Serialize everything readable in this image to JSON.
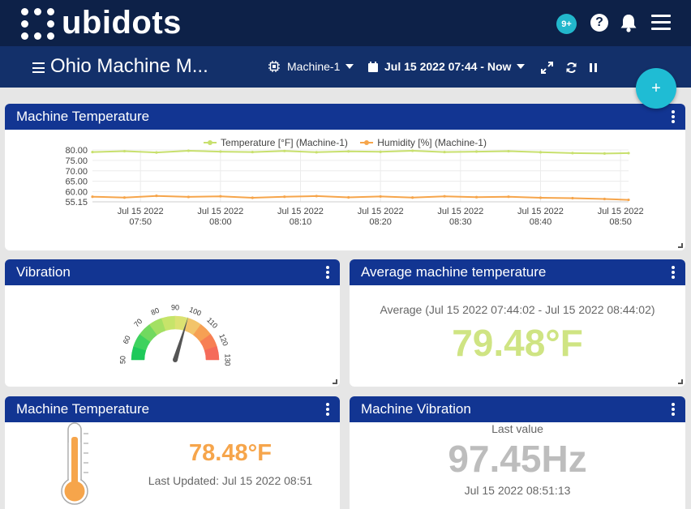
{
  "app": {
    "logo_text": "ubidots"
  },
  "header": {
    "notification_count": "9+",
    "help_label": "?"
  },
  "dashboard": {
    "title": "Ohio Machine M...",
    "device_selector": "Machine-1",
    "date_range": "Jul 15 2022 07:44 - Now",
    "add_label": "+"
  },
  "widgets": {
    "line_chart": {
      "title": "Machine Temperature"
    },
    "vibration": {
      "title": "Vibration"
    },
    "avg_temp": {
      "title": "Average machine temperature",
      "caption": "Average (Jul 15 2022 07:44:02 - Jul 15 2022 08:44:02)",
      "value": "79.48°F",
      "color": "#cfe483"
    },
    "thermo": {
      "title": "Machine Temperature",
      "value": "78.48°F",
      "updated": "Last Updated: Jul 15 2022 08:51",
      "color": "#f6a54b"
    },
    "machine_vibration": {
      "title": "Machine Vibration",
      "caption": "Last value",
      "value": "97.45Hz",
      "timestamp": "Jul 15 2022 08:51:13",
      "color": "#bdbdbd"
    }
  },
  "chart_data": {
    "type": "line",
    "title": "",
    "xlabel": "",
    "ylabel": "",
    "y_ticks": [
      "80.00",
      "75.00",
      "70.00",
      "65.00",
      "60.00",
      "55.15"
    ],
    "ylim": [
      55.15,
      80.0
    ],
    "x_ticks": [
      {
        "date": "Jul 15 2022",
        "time": "07:50"
      },
      {
        "date": "Jul 15 2022",
        "time": "08:00"
      },
      {
        "date": "Jul 15 2022",
        "time": "08:10"
      },
      {
        "date": "Jul 15 2022",
        "time": "08:20"
      },
      {
        "date": "Jul 15 2022",
        "time": "08:30"
      },
      {
        "date": "Jul 15 2022",
        "time": "08:40"
      },
      {
        "date": "Jul 15 2022",
        "time": "08:50"
      }
    ],
    "x": [
      "07:44",
      "07:48",
      "07:52",
      "07:56",
      "08:00",
      "08:04",
      "08:08",
      "08:12",
      "08:16",
      "08:20",
      "08:24",
      "08:28",
      "08:32",
      "08:36",
      "08:40",
      "08:44",
      "08:48",
      "08:51"
    ],
    "series": [
      {
        "name": "Temperature [°F] (Machine-1)",
        "color": "#c8e06e",
        "values": [
          79.0,
          79.4,
          78.8,
          79.6,
          79.2,
          79.0,
          79.5,
          78.9,
          79.3,
          79.1,
          79.6,
          79.0,
          79.2,
          79.4,
          78.9,
          78.5,
          78.3,
          78.48
        ]
      },
      {
        "name": "Humidity [%] (Machine-1)",
        "color": "#f6a54b",
        "values": [
          57.6,
          57.2,
          58.0,
          57.5,
          57.8,
          57.1,
          57.6,
          57.9,
          57.3,
          57.7,
          57.2,
          57.8,
          57.4,
          57.6,
          57.1,
          56.9,
          56.5,
          56.1
        ]
      }
    ]
  },
  "gauge": {
    "min": 50,
    "max": 130,
    "ticks": [
      "50",
      "60",
      "70",
      "80",
      "90",
      "100",
      "110",
      "120",
      "130"
    ],
    "value": 97.45,
    "colors": [
      "#1ec95a",
      "#3ed25e",
      "#71d95f",
      "#a3e063",
      "#c6e46a",
      "#dbe272",
      "#f2c46a",
      "#f6a054",
      "#f77f53",
      "#f56b5a"
    ]
  }
}
